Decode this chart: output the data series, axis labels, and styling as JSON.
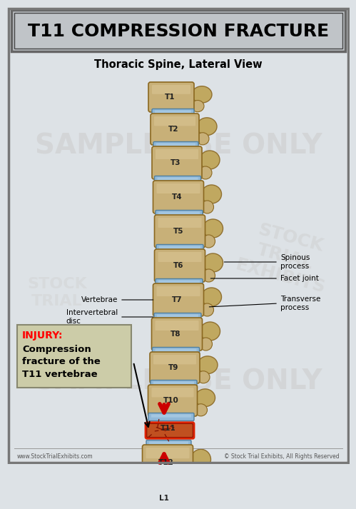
{
  "title": "T11 COMPRESSION FRACTURE",
  "subtitle": "Thoracic Spine, Lateral View",
  "bg_color": "#dde2e6",
  "header_bg": "#c0c4c8",
  "spine_area_bg": "#dde2e6",
  "vertebrae_labels": [
    "T1",
    "T2",
    "T3",
    "T4",
    "T5",
    "T6",
    "T7",
    "T8",
    "T9",
    "T10",
    "T11",
    "T12"
  ],
  "injury_label_title": "INJURY:",
  "injury_label_body": "Compression\nfracture of the\nT11 vertebrae",
  "footer_left": "www.StockTrialExhibits.com",
  "footer_right": "© Stock Trial Exhibits, All Rights Reserved",
  "watermark_top": "SAMPLE USE ONLY",
  "watermark_bot": "SAMPLE USE ONLY",
  "watermark_mid": "STOCK\nTRIAL\nEXHIBITS",
  "vertebra_color": "#c8b078",
  "vertebra_light": "#ddc898",
  "vertebra_shadow": "#a08040",
  "vertebra_edge": "#8b6820",
  "disc_color": "#90b8d8",
  "disc_light": "#b0d0e8",
  "disc_edge": "#5080a0",
  "fracture_color": "#c05020",
  "fracture_edge": "#801000",
  "arrow_color": "#cc0000",
  "injury_box_bg": "#cccca8",
  "injury_box_edge": "#888870",
  "label_line_color": "#111111",
  "process_color": "#c0a860",
  "process_edge": "#907030"
}
